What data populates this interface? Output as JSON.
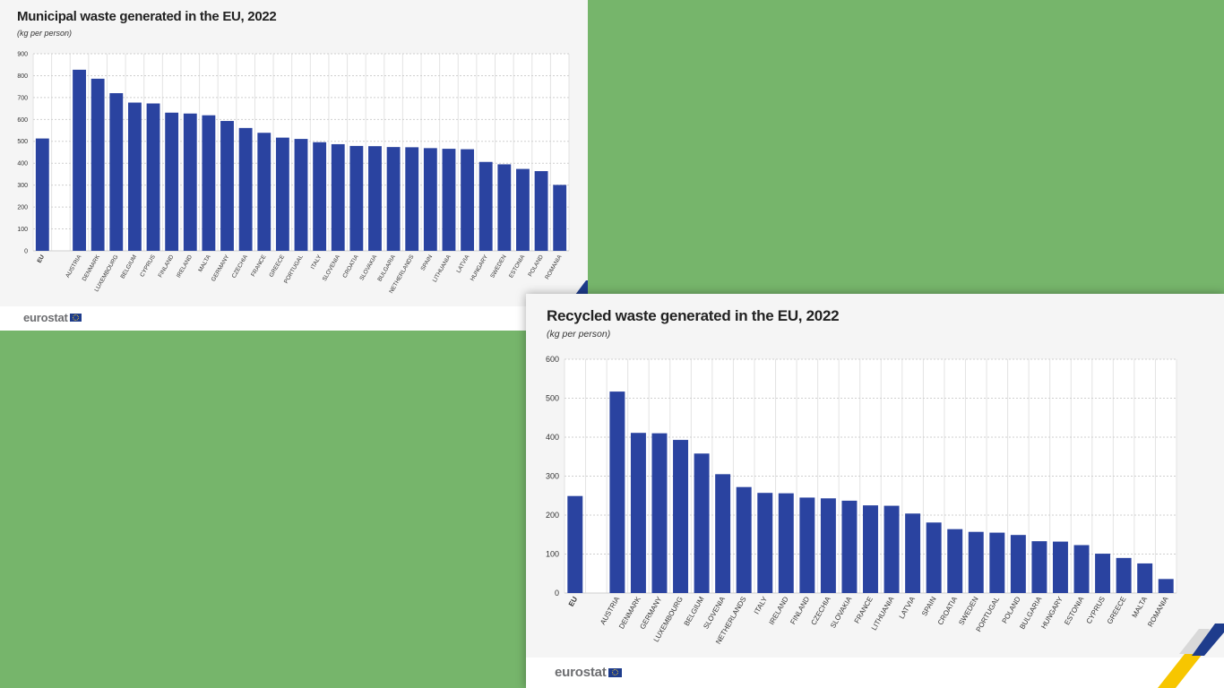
{
  "colors": {
    "background": "#76b56b",
    "bar": "#2a43a0",
    "panel": "#f5f5f5",
    "footer": "#ffffff",
    "brand_yellow": "#f7c600",
    "brand_blue": "#1e3c8c"
  },
  "brand": {
    "logo_text": "eurostat",
    "flag_icon": "eu-flag-icon"
  },
  "chart_data": [
    {
      "type": "bar",
      "title": "Municipal waste generated in the EU, 2022",
      "subtitle": "(kg per person)",
      "xlabel": "",
      "ylabel": "",
      "ylim": [
        0,
        900
      ],
      "yticks": [
        0,
        100,
        200,
        300,
        400,
        500,
        600,
        700,
        800,
        900
      ],
      "grid": true,
      "categories": [
        "EU",
        "",
        "AUSTRIA",
        "DENMARK",
        "LUXEMBOURG",
        "BELGIUM",
        "CYPRUS",
        "FINLAND",
        "IRELAND",
        "MALTA",
        "GERMANY",
        "CZECHIA",
        "FRANCE",
        "GREECE",
        "PORTUGAL",
        "ITALY",
        "SLOVENIA",
        "CROATIA",
        "SLOVAKIA",
        "BULGARIA",
        "NETHERLANDS",
        "SPAIN",
        "LITHUANIA",
        "LATVIA",
        "HUNGARY",
        "SWEDEN",
        "ESTONIA",
        "POLAND",
        "ROMANIA"
      ],
      "values": [
        513,
        null,
        827,
        786,
        720,
        677,
        673,
        631,
        627,
        619,
        593,
        561,
        539,
        517,
        511,
        496,
        487,
        479,
        478,
        474,
        473,
        469,
        466,
        464,
        406,
        395,
        374,
        364,
        301
      ]
    },
    {
      "type": "bar",
      "title": "Recycled waste generated in the EU, 2022",
      "subtitle": "(kg per person)",
      "xlabel": "",
      "ylabel": "",
      "ylim": [
        0,
        600
      ],
      "yticks": [
        0,
        100,
        200,
        300,
        400,
        500,
        600
      ],
      "grid": true,
      "categories": [
        "EU",
        "",
        "AUSTRIA",
        "DENMARK",
        "GERMANY",
        "LUXEMBOURG",
        "BELGIUM",
        "SLOVENIA",
        "NETHERLANDS",
        "ITALY",
        "IRELAND",
        "FINLAND",
        "CZECHIA",
        "SLOVAKIA",
        "FRANCE",
        "LITHUANIA",
        "LATVIA",
        "SPAIN",
        "CROATIA",
        "SWEDEN",
        "PORTUGAL",
        "POLAND",
        "BULGARIA",
        "HUNGARY",
        "ESTONIA",
        "CYPRUS",
        "GREECE",
        "MALTA",
        "ROMANIA"
      ],
      "values": [
        249,
        null,
        517,
        411,
        410,
        393,
        358,
        305,
        272,
        257,
        256,
        245,
        243,
        237,
        225,
        224,
        204,
        181,
        164,
        157,
        155,
        149,
        133,
        132,
        123,
        101,
        90,
        76,
        36
      ]
    }
  ]
}
